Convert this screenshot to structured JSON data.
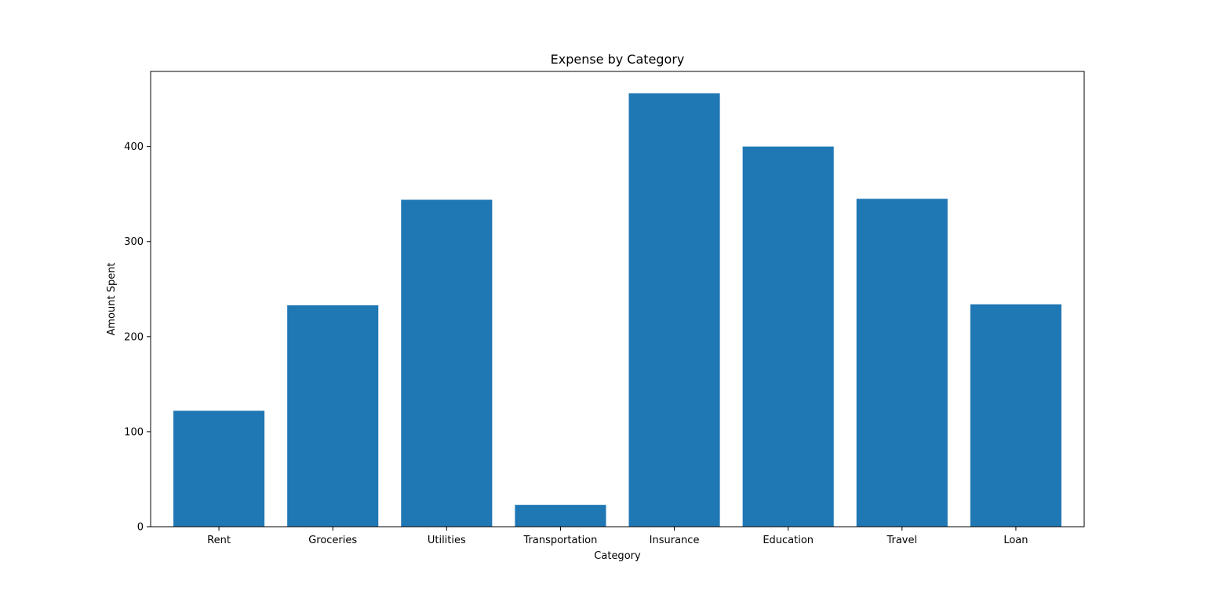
{
  "chart_data": {
    "type": "bar",
    "title": "Expense by Category",
    "xlabel": "Category",
    "ylabel": "Amount Spent",
    "categories": [
      "Rent",
      "Groceries",
      "Utilities",
      "Transportation",
      "Insurance",
      "Education",
      "Travel",
      "Loan"
    ],
    "values": [
      122,
      233,
      344,
      23,
      456,
      400,
      345,
      234
    ],
    "ylim": [
      0,
      479
    ],
    "yticks": [
      0,
      100,
      200,
      300,
      400
    ],
    "grid": false,
    "legend": "none",
    "bar_color": "#1f77b4"
  }
}
